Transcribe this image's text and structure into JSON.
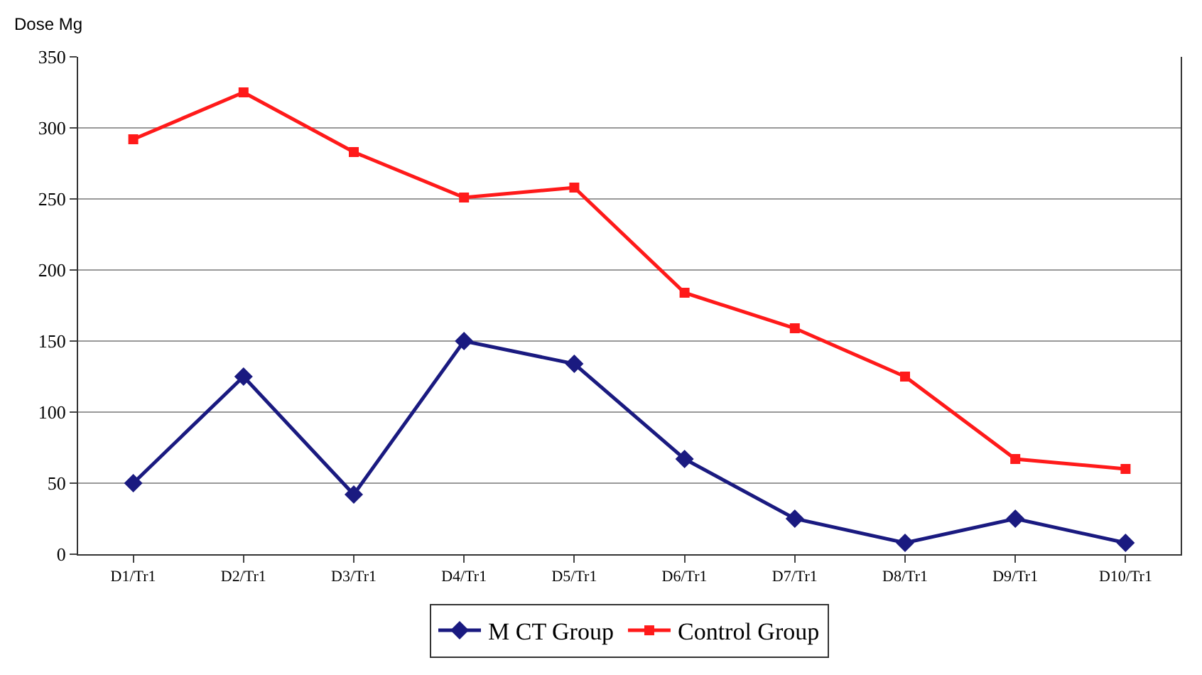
{
  "chart_data": {
    "type": "line",
    "ylabel": "Dose Mg",
    "categories": [
      "D1/Tr1",
      "D2/Tr1",
      "D3/Tr1",
      "D4/Tr1",
      "D5/Tr1",
      "D6/Tr1",
      "D7/Tr1",
      "D8/Tr1",
      "D9/Tr1",
      "D10/Tr1"
    ],
    "series": [
      {
        "name": "M CT Group",
        "color": "#1a1a80",
        "marker": "diamond",
        "values": [
          50,
          125,
          42,
          150,
          134,
          67,
          25,
          8,
          25,
          8
        ]
      },
      {
        "name": "Control Group",
        "color": "#ff1a1a",
        "marker": "square",
        "values": [
          292,
          325,
          283,
          251,
          258,
          184,
          159,
          125,
          67,
          60
        ]
      }
    ],
    "ylim": [
      0,
      350
    ],
    "yticks": [
      0,
      50,
      100,
      150,
      200,
      250,
      300,
      350
    ],
    "grid": "y",
    "legend": "bottom"
  }
}
